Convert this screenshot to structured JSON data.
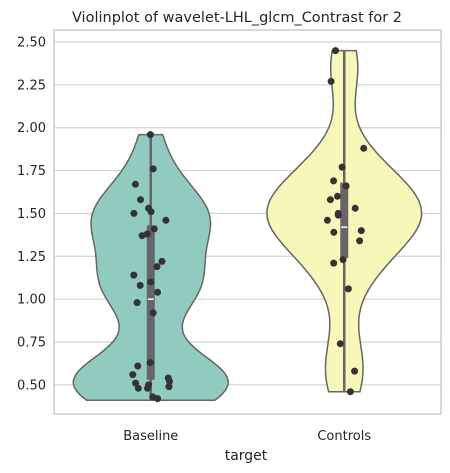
{
  "chart_data": {
    "type": "violin",
    "title": "Violinplot of wavelet-LHL_glcm_Contrast for 2",
    "xlabel": "target",
    "ylabel": "",
    "categories": [
      "Baseline",
      "Controls"
    ],
    "ylim": [
      0.33,
      2.57
    ],
    "yticks": [
      "0.50",
      "0.75",
      "1.00",
      "1.25",
      "1.50",
      "1.75",
      "2.00",
      "2.25",
      "2.50"
    ],
    "grid": true,
    "colors": {
      "Baseline": "#91cbbf",
      "Controls": "#f7f7ba",
      "outline": "#666666",
      "points": "#333333",
      "box": "#666666",
      "median": "#ffffff",
      "grid": "#d4d4d4",
      "axes": "#cccccc"
    },
    "violins": [
      {
        "category": "Baseline",
        "min": 0.41,
        "max": 1.96,
        "q1": 0.53,
        "median": 1.0,
        "q3": 1.43,
        "points": [
          1.96,
          1.76,
          1.67,
          1.58,
          1.53,
          1.51,
          1.5,
          1.46,
          1.41,
          1.38,
          1.37,
          1.22,
          1.19,
          1.14,
          1.1,
          1.08,
          1.04,
          0.98,
          0.92,
          0.63,
          0.61,
          0.56,
          0.54,
          0.52,
          0.51,
          0.5,
          0.49,
          0.48,
          0.48,
          0.43,
          0.42
        ]
      },
      {
        "category": "Controls",
        "min": 0.46,
        "max": 2.45,
        "q1": 1.24,
        "median": 1.42,
        "q3": 1.68,
        "points": [
          2.45,
          2.27,
          1.88,
          1.77,
          1.69,
          1.66,
          1.6,
          1.58,
          1.53,
          1.5,
          1.49,
          1.46,
          1.4,
          1.39,
          1.34,
          1.23,
          1.21,
          1.06,
          0.74,
          0.58,
          0.46
        ]
      }
    ]
  }
}
